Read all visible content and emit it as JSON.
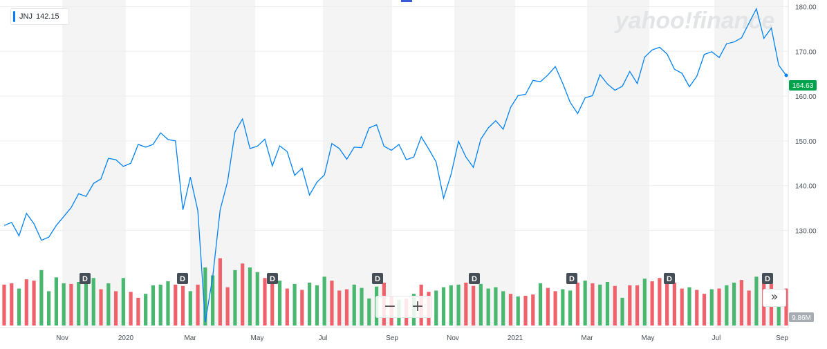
{
  "legend": {
    "symbol": "JNJ",
    "value": "142.15"
  },
  "watermark": "yahoo!finance",
  "last_price_label": "164.63",
  "volume_label": "9.86M",
  "zoom": {
    "minus": "−",
    "plus": "+"
  },
  "scroll_right_label": "»",
  "dividend_marker": "D",
  "colors": {
    "price_line": "#0081f2",
    "volume_up": "#49b76f",
    "volume_down": "#f0626b",
    "last_price_badge": "#00a34b",
    "band": "#f4f4f4",
    "dividend_badge": "#454d56"
  },
  "chart_data": {
    "type": "line",
    "series": [
      {
        "name": "JNJ",
        "values": [
          131.1,
          131.8,
          128.8,
          133.8,
          131.5,
          127.8,
          128.5,
          131.1,
          133.1,
          135.1,
          138.2,
          137.6,
          140.5,
          141.5,
          146.1,
          145.8,
          144.3,
          145.0,
          149.2,
          148.6,
          149.2,
          151.8,
          150.3,
          150.0,
          134.6,
          141.9,
          134.4,
          109.5,
          119.6,
          134.6,
          140.9,
          152.0,
          154.9,
          148.3,
          148.8,
          150.4,
          144.4,
          148.9,
          147.6,
          142.3,
          143.9,
          137.9,
          140.8,
          142.4,
          149.4,
          148.3,
          145.9,
          148.6,
          148.5,
          152.9,
          153.6,
          148.8,
          147.9,
          149.2,
          145.8,
          146.4,
          150.9,
          148.2,
          145.3,
          137.2,
          142.5,
          149.9,
          146.4,
          144.1,
          150.4,
          152.9,
          154.5,
          152.6,
          157.5,
          160.1,
          160.4,
          163.5,
          163.2,
          164.7,
          166.6,
          162.8,
          158.6,
          156.1,
          159.6,
          160.1,
          164.8,
          162.7,
          161.3,
          162.2,
          165.5,
          162.8,
          168.7,
          170.3,
          170.9,
          169.4,
          166.0,
          165.1,
          162.1,
          164.4,
          169.3,
          169.9,
          168.6,
          171.7,
          172.1,
          173.0,
          176.3,
          179.5,
          172.9,
          175.2,
          166.9,
          164.63
        ]
      }
    ],
    "volume_values": [
      6.2,
      6.4,
      5.6,
      7.0,
      6.8,
      8.4,
      5.2,
      7.3,
      6.4,
      6.3,
      6.6,
      6.5,
      7.2,
      5.5,
      6.4,
      5.2,
      7.2,
      5.1,
      4.2,
      4.8,
      6.1,
      6.2,
      6.7,
      6.2,
      6.0,
      5.2,
      6.2,
      8.8,
      7.6,
      10.2,
      5.8,
      8.4,
      9.4,
      8.8,
      8.1,
      7.2,
      6.4,
      6.8,
      5.6,
      6.3,
      5.4,
      6.5,
      6.1,
      7.4,
      6.8,
      5.3,
      5.5,
      6.2,
      5.7,
      4.1,
      5.9,
      6.5,
      4.5,
      3.9,
      4.1,
      4.8,
      6.2,
      5.1,
      5.3,
      5.8,
      6.1,
      6.2,
      6.5,
      6.0,
      6.3,
      5.6,
      5.8,
      5.2,
      4.8,
      4.4,
      4.5,
      4.7,
      6.4,
      5.7,
      5.2,
      5.5,
      5.3,
      6.5,
      6.8,
      6.4,
      6.2,
      6.6,
      6.0,
      4.2,
      6.1,
      6.1,
      7.1,
      6.7,
      7.2,
      6.7,
      6.5,
      5.6,
      5.8,
      5.4,
      4.8,
      5.5,
      5.6,
      6.1,
      6.5,
      6.9,
      5.3,
      7.4,
      6.4,
      6.3,
      3.8,
      5.6
    ],
    "volume_up": [
      false,
      false,
      true,
      false,
      false,
      true,
      true,
      true,
      true,
      false,
      true,
      true,
      true,
      false,
      true,
      false,
      true,
      false,
      false,
      true,
      true,
      true,
      true,
      false,
      false,
      true,
      false,
      true,
      true,
      false,
      false,
      true,
      false,
      true,
      true,
      false,
      false,
      true,
      false,
      true,
      false,
      true,
      true,
      true,
      false,
      false,
      false,
      true,
      true,
      true,
      true,
      false,
      false,
      true,
      false,
      true,
      false,
      false,
      true,
      true,
      true,
      true,
      false,
      false,
      true,
      true,
      true,
      true,
      false,
      true,
      false,
      false,
      true,
      false,
      false,
      true,
      true,
      false,
      true,
      false,
      true,
      true,
      false,
      true,
      false,
      false,
      true,
      false,
      false,
      false,
      false,
      false,
      true,
      false,
      false,
      true,
      false,
      true,
      true,
      false,
      false,
      true,
      false,
      false,
      true,
      false
    ],
    "x_tick_labels": [
      "Nov",
      "2020",
      "Mar",
      "May",
      "Jul",
      "Sep",
      "Nov",
      "2021",
      "Mar",
      "May",
      "Jul",
      "Sep"
    ],
    "y_tick_labels": [
      "130.00",
      "140.00",
      "150.00",
      "160.00",
      "170.00",
      "180.00"
    ],
    "ylim": [
      110,
      181
    ],
    "grid": true
  }
}
